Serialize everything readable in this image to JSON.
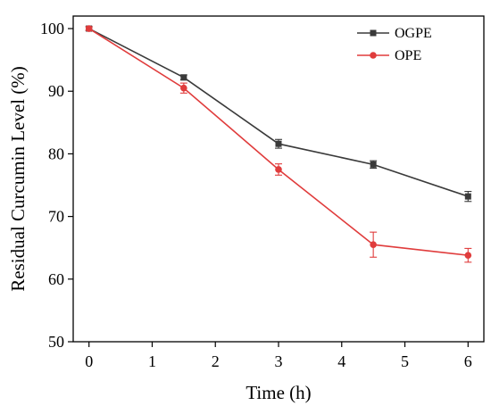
{
  "chart_data": {
    "type": "line",
    "title": "",
    "xlabel": "Time (h)",
    "ylabel": "Residual Curcumin Level (%)",
    "xlim": [
      -0.25,
      6.25
    ],
    "ylim": [
      50,
      102
    ],
    "xticks": [
      0,
      1,
      2,
      3,
      4,
      5,
      6
    ],
    "yticks": [
      50,
      60,
      70,
      80,
      90,
      100
    ],
    "legend_position": "top-right",
    "grid": false,
    "series": [
      {
        "name": "OGPE",
        "color": "#3a3a3a",
        "marker": "square",
        "x": [
          0,
          1.5,
          3,
          4.5,
          6
        ],
        "y": [
          100,
          92.2,
          81.6,
          78.3,
          73.2
        ],
        "error": [
          0.3,
          0.4,
          0.7,
          0.6,
          0.8
        ]
      },
      {
        "name": "OPE",
        "color": "#e03c3c",
        "marker": "circle",
        "x": [
          0,
          1.5,
          3,
          4.5,
          6
        ],
        "y": [
          100,
          90.5,
          77.5,
          65.5,
          63.8
        ],
        "error": [
          0.3,
          0.8,
          0.9,
          2.0,
          1.1
        ]
      }
    ]
  }
}
